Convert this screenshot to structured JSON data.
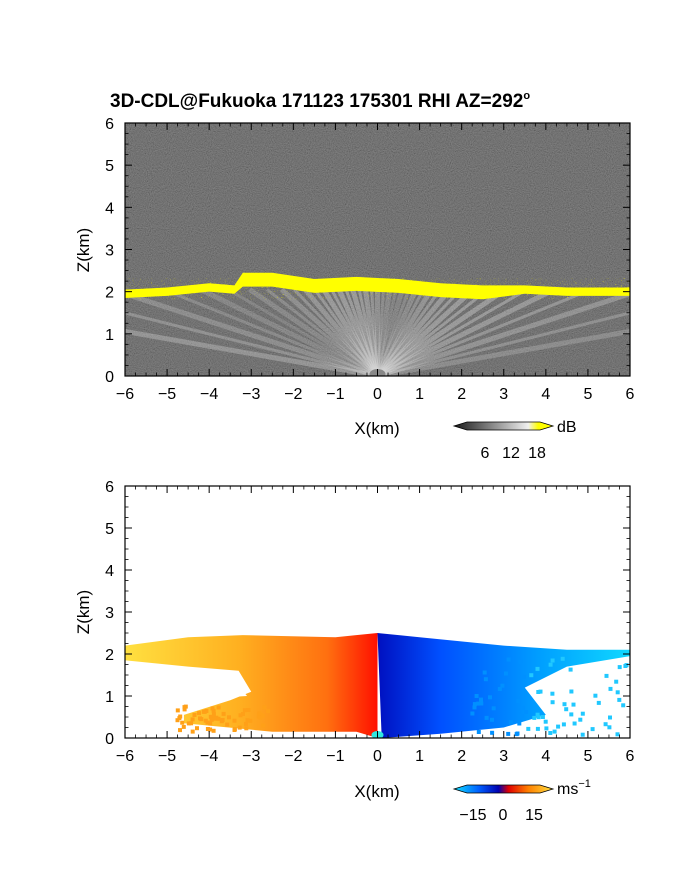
{
  "title": "3D-CDL@Fukuoka 171123 175301 RHI AZ=292",
  "title_suffix": "o",
  "chart_data": [
    {
      "type": "heatmap",
      "name": "backscatter",
      "xlabel": "X(km)",
      "ylabel": "Z(km)",
      "xlim": [
        -6,
        6
      ],
      "ylim": [
        0,
        6
      ],
      "xticks": [
        "-6",
        "-5",
        "-4",
        "-3",
        "-2",
        "-1",
        "0",
        "1",
        "2",
        "3",
        "4",
        "5",
        "6"
      ],
      "yticks": [
        "0",
        "1",
        "2",
        "3",
        "4",
        "5",
        "6"
      ],
      "colorbar": {
        "unit": "dB",
        "ticks": [
          "6",
          "12",
          "18"
        ],
        "colors": [
          "#1a1a1a",
          "#ffffff",
          "#ffff00"
        ]
      },
      "layer_top_km": [
        [
          -6.0,
          2.05
        ],
        [
          -5.0,
          2.1
        ],
        [
          -4.0,
          2.2
        ],
        [
          -3.4,
          2.15
        ],
        [
          -3.2,
          2.45
        ],
        [
          -2.5,
          2.45
        ],
        [
          -1.5,
          2.3
        ],
        [
          -0.5,
          2.35
        ],
        [
          0.5,
          2.3
        ],
        [
          1.5,
          2.2
        ],
        [
          2.5,
          2.15
        ],
        [
          3.5,
          2.15
        ],
        [
          4.5,
          2.1
        ],
        [
          5.5,
          2.1
        ],
        [
          6.0,
          2.1
        ]
      ]
    },
    {
      "type": "heatmap",
      "name": "doppler_velocity",
      "xlabel": "X(km)",
      "ylabel": "Z(km)",
      "xlim": [
        -6,
        6
      ],
      "ylim": [
        0,
        6
      ],
      "xticks": [
        "-6",
        "-5",
        "-4",
        "-3",
        "-2",
        "-1",
        "0",
        "1",
        "2",
        "3",
        "4",
        "5",
        "6"
      ],
      "yticks": [
        "0",
        "1",
        "2",
        "3",
        "4",
        "5",
        "6"
      ],
      "colorbar": {
        "unit": "ms",
        "unit_sup": "−1",
        "ticks": [
          "−15",
          "0",
          "15"
        ],
        "range": [
          -20,
          20
        ],
        "colors": [
          "#00e0ff",
          "#0050ff",
          "#0000c0",
          "#ff0000",
          "#ff8000",
          "#ffe040"
        ]
      },
      "layer_top_km": [
        [
          -6.0,
          2.2
        ],
        [
          -4.5,
          2.4
        ],
        [
          -3.2,
          2.45
        ],
        [
          -1.0,
          2.4
        ],
        [
          0.0,
          2.5
        ],
        [
          1.0,
          2.4
        ],
        [
          3.0,
          2.2
        ],
        [
          4.5,
          2.1
        ],
        [
          6.0,
          2.1
        ]
      ]
    }
  ]
}
